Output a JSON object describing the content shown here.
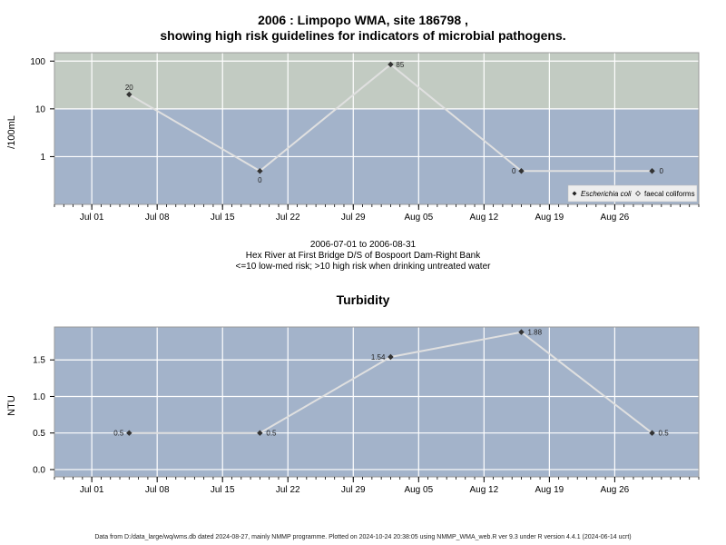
{
  "header": {
    "title_line1": "2006 : Limpopo WMA, site 186798 ,",
    "title_line2": "showing high risk guidelines for indicators of microbial pathogens."
  },
  "caption": {
    "line1": "2006-07-01 to 2006-08-31",
    "line2": "Hex River at First Bridge D/S of Bospoort Dam-Right Bank",
    "line3": "<=10 low-med risk; >10 high risk when drinking untreated water"
  },
  "footer": "Data from D:/data_large/wq/wms.db dated 2024-08-27, mainly NMMP programme. Plotted on 2024-10-24 20:38:05 using NMMP_WMA_web.R ver 9.3 under R version 4.4.1 (2024-06-14 ucrt)",
  "colors": {
    "low_band": "#a3b3ca",
    "high_band": "#c2cbc2",
    "line": "#e0e0e0",
    "grid": "#ffffff",
    "point": "#333333"
  },
  "chart_data": [
    {
      "type": "line",
      "ylabel": "/100mL",
      "y_scale": "log",
      "ylim": [
        0.1,
        150
      ],
      "y_ticks": [
        1,
        10,
        100
      ],
      "y_tick_labels": [
        "1",
        "10",
        "100"
      ],
      "xlim": [
        "2006-06-27",
        "2006-09-04"
      ],
      "x_ticks": [
        "2006-07-01",
        "2006-07-08",
        "2006-07-15",
        "2006-07-22",
        "2006-07-29",
        "2006-08-05",
        "2006-08-12",
        "2006-08-19",
        "2006-08-26"
      ],
      "x_tick_labels": [
        "Jul 01",
        "Jul 08",
        "Jul 15",
        "Jul 22",
        "Jul 29",
        "Aug 05",
        "Aug 12",
        "Aug 19",
        "Aug 26"
      ],
      "bands": [
        {
          "from": 0.1,
          "to": 10,
          "color": "#a3b3ca"
        },
        {
          "from": 10,
          "to": 150,
          "color": "#c2cbc2"
        }
      ],
      "legend": {
        "position": "bottom-right",
        "entries": [
          "Escherichia coli",
          "faecal coliforms"
        ]
      },
      "series": [
        {
          "name": "Escherichia coli",
          "x": [
            "2006-07-05",
            "2006-07-19",
            "2006-08-02",
            "2006-08-16",
            "2006-08-30"
          ],
          "y": [
            20,
            0.5,
            85,
            0.5,
            0.5
          ],
          "labels": [
            "20",
            "0",
            "85",
            "0",
            "0"
          ]
        }
      ]
    },
    {
      "type": "line",
      "title": "Turbidity",
      "ylabel": "NTU",
      "ylim": [
        -0.1,
        1.95
      ],
      "y_ticks": [
        0,
        0.5,
        1,
        1.5
      ],
      "y_tick_labels": [
        "0.0",
        "0.5",
        "1.0",
        "1.5"
      ],
      "xlim": [
        "2006-06-27",
        "2006-09-04"
      ],
      "x_ticks": [
        "2006-07-01",
        "2006-07-08",
        "2006-07-15",
        "2006-07-22",
        "2006-07-29",
        "2006-08-05",
        "2006-08-12",
        "2006-08-19",
        "2006-08-26"
      ],
      "x_tick_labels": [
        "Jul 01",
        "Jul 08",
        "Jul 15",
        "Jul 22",
        "Jul 29",
        "Aug 05",
        "Aug 12",
        "Aug 19",
        "Aug 26"
      ],
      "series": [
        {
          "x": [
            "2006-07-05",
            "2006-07-19",
            "2006-08-02",
            "2006-08-16",
            "2006-08-30"
          ],
          "y": [
            0.5,
            0.5,
            1.54,
            1.88,
            0.5
          ],
          "labels": [
            "0.5",
            "0.5",
            "1.54",
            "1.88",
            "0.5"
          ]
        }
      ]
    }
  ]
}
